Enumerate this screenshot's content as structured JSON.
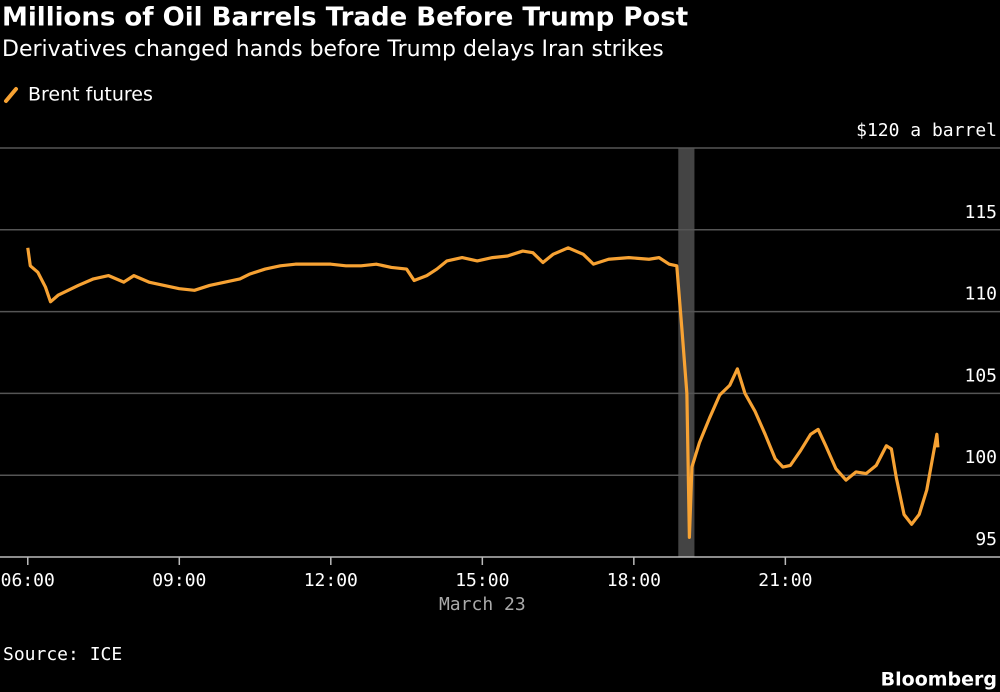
{
  "chart_data": {
    "type": "line",
    "title": "Millions of Oil Barrels Trade Before Trump Post",
    "subtitle": "Derivatives changed hands before Trump delays Iran strikes",
    "x": [
      6.0,
      6.05,
      6.2,
      6.35,
      6.45,
      6.6,
      6.8,
      7.0,
      7.3,
      7.6,
      7.9,
      8.1,
      8.4,
      8.7,
      9.0,
      9.3,
      9.6,
      9.9,
      10.2,
      10.4,
      10.7,
      11.0,
      11.3,
      11.7,
      12.0,
      12.3,
      12.6,
      12.9,
      13.2,
      13.5,
      13.65,
      13.9,
      14.1,
      14.3,
      14.6,
      14.9,
      15.2,
      15.5,
      15.8,
      16.0,
      16.2,
      16.4,
      16.7,
      17.0,
      17.2,
      17.5,
      17.9,
      18.3,
      18.5,
      18.7,
      18.85,
      18.95,
      19.05,
      19.1,
      19.15,
      19.3,
      19.5,
      19.7,
      19.9,
      20.05,
      20.2,
      20.4,
      20.6,
      20.8,
      20.95,
      21.1,
      21.3,
      21.5,
      21.65,
      21.8,
      22.0,
      22.2,
      22.4,
      22.6,
      22.8,
      23.0,
      23.1,
      23.2,
      23.35,
      23.5,
      23.65,
      23.8,
      23.9,
      24.0,
      24.02
    ],
    "series": [
      {
        "name": "Brent futures",
        "color": "#f7a233",
        "values": [
          113.9,
          112.8,
          112.4,
          111.5,
          110.6,
          111.0,
          111.3,
          111.6,
          112.0,
          112.2,
          111.8,
          112.2,
          111.8,
          111.6,
          111.4,
          111.3,
          111.6,
          111.8,
          112.0,
          112.3,
          112.6,
          112.8,
          112.9,
          112.9,
          112.9,
          112.8,
          112.8,
          112.9,
          112.7,
          112.6,
          111.9,
          112.2,
          112.6,
          113.1,
          113.3,
          113.1,
          113.3,
          113.4,
          113.7,
          113.6,
          113.0,
          113.5,
          113.9,
          113.5,
          112.9,
          113.2,
          113.3,
          113.2,
          113.3,
          112.9,
          112.8,
          109.0,
          105.0,
          96.2,
          100.5,
          102.0,
          103.5,
          104.9,
          105.5,
          106.5,
          105.0,
          103.9,
          102.5,
          101.0,
          100.5,
          100.6,
          101.5,
          102.5,
          102.8,
          101.8,
          100.4,
          99.7,
          100.2,
          100.1,
          100.6,
          101.8,
          101.6,
          99.8,
          97.6,
          97.0,
          97.6,
          99.1,
          100.8,
          102.5,
          101.7
        ]
      }
    ],
    "xlim": [
      5.45,
      25.25
    ],
    "xticks": [
      {
        "value": 6,
        "label": "06:00"
      },
      {
        "value": 9,
        "label": "09:00"
      },
      {
        "value": 12,
        "label": "12:00"
      },
      {
        "value": 15,
        "label": "15:00"
      },
      {
        "value": 18,
        "label": "18:00"
      },
      {
        "value": 21,
        "label": "21:00"
      }
    ],
    "xlabel": "March 23",
    "ylim": [
      95,
      120
    ],
    "yticks": [
      95,
      100,
      105,
      110,
      115,
      {
        "value": 120,
        "label": "$120 a barrel"
      }
    ],
    "grid": true,
    "highlight_x": [
      18.88,
      19.2
    ],
    "highlight_color": "#444444",
    "source": "Source: ICE",
    "credit": "Bloomberg"
  }
}
